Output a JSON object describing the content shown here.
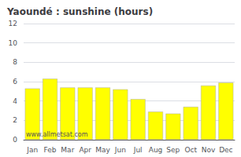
{
  "chart_data": {
    "type": "bar",
    "title": "Yaoundé : sunshine (hours)",
    "categories": [
      "Jan",
      "Feb",
      "Mar",
      "Apr",
      "May",
      "Jun",
      "Jul",
      "Aug",
      "Sep",
      "Oct",
      "Nov",
      "Dec"
    ],
    "values": [
      5.3,
      6.3,
      5.4,
      5.4,
      5.4,
      5.2,
      4.2,
      2.9,
      2.7,
      3.4,
      5.6,
      5.9
    ],
    "color": "#FFFF00",
    "ylim": [
      0,
      12
    ],
    "yticks": [
      0,
      2,
      4,
      6,
      8,
      10,
      12
    ],
    "grid": true,
    "annotation": "www.allmetsat.com"
  }
}
